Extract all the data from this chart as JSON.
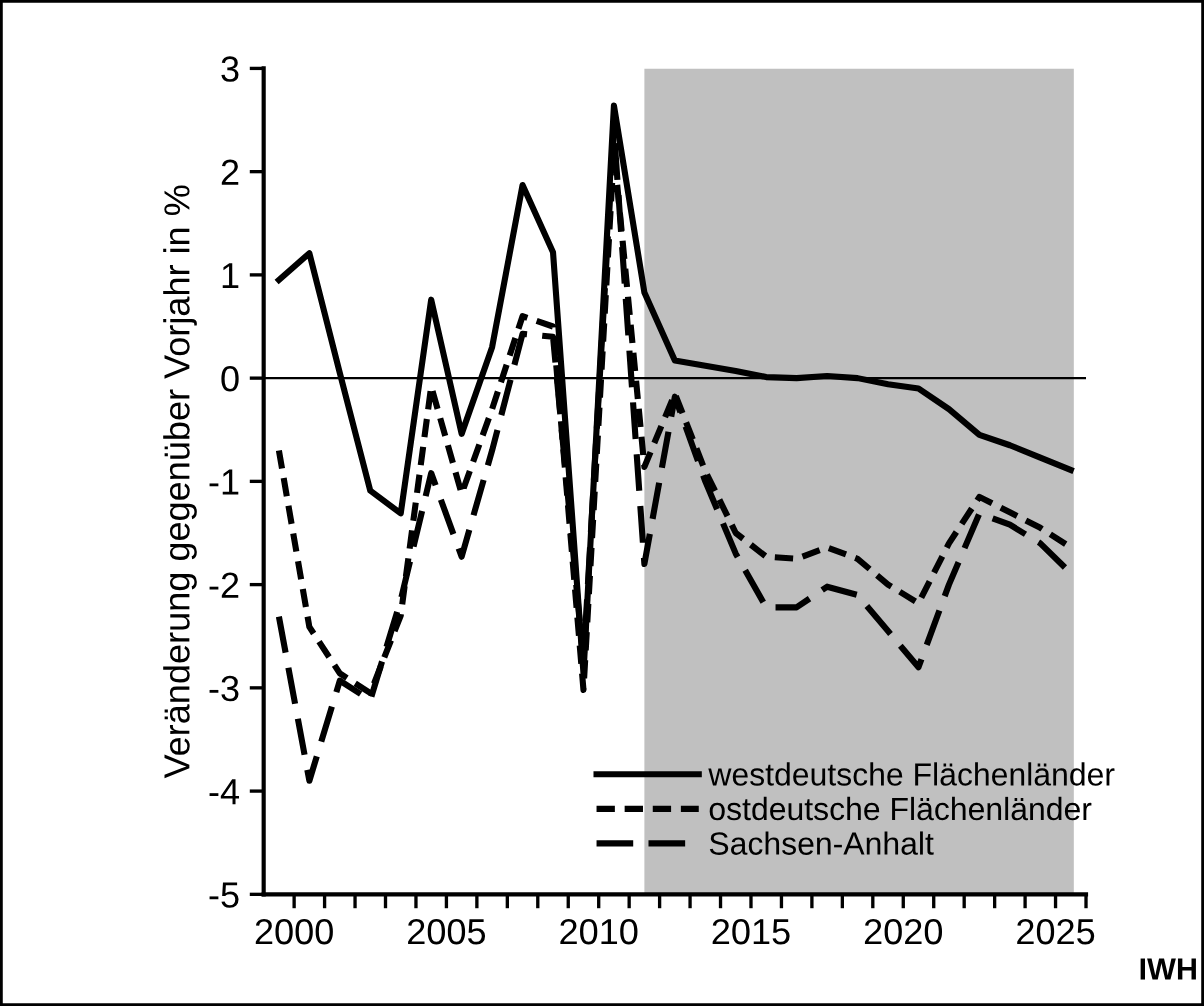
{
  "chart_data": {
    "type": "line",
    "ylabel": "Veränderung gegenüber Vorjahr in %",
    "x": [
      1999.5,
      2000.5,
      2001.5,
      2002.5,
      2003.5,
      2004.5,
      2005.5,
      2006.5,
      2007.5,
      2008.5,
      2009.5,
      2010.5,
      2011.5,
      2012.5,
      2013.5,
      2014.5,
      2015.5,
      2016.5,
      2017.5,
      2018.5,
      2019.5,
      2020.5,
      2021.5,
      2022.5,
      2023.5,
      2024.5,
      2025.5
    ],
    "series": [
      {
        "name": "westdeutsche Flächenländer",
        "color": "#000000",
        "line_style": "solid",
        "values": [
          0.95,
          1.21,
          0.05,
          -1.09,
          -1.31,
          0.76,
          -0.54,
          0.3,
          1.87,
          1.22,
          -2.86,
          2.64,
          0.83,
          0.17,
          0.12,
          0.07,
          0.01,
          0.0,
          0.02,
          0.0,
          -0.06,
          -0.1,
          -0.3,
          -0.55,
          -0.65,
          -0.77,
          -0.89
        ]
      },
      {
        "name": "ostdeutsche Flächenländer",
        "color": "#000000",
        "line_style": "dashed",
        "values": [
          -0.7,
          -2.41,
          -2.86,
          -3.05,
          -2.3,
          -0.08,
          -1.12,
          -0.3,
          0.6,
          0.5,
          -3.02,
          2.2,
          -0.86,
          -0.15,
          -0.9,
          -1.5,
          -1.73,
          -1.75,
          -1.64,
          -1.75,
          -2.0,
          -2.18,
          -1.6,
          -1.15,
          -1.3,
          -1.45,
          -1.64
        ]
      },
      {
        "name": "Sachsen-Anhalt",
        "color": "#000000",
        "line_style": "dashed",
        "values": [
          -2.31,
          -3.9,
          -2.93,
          -3.12,
          -2.15,
          -0.92,
          -1.73,
          -0.7,
          0.43,
          0.4,
          -2.75,
          2.4,
          -1.8,
          -0.18,
          -1.0,
          -1.7,
          -2.22,
          -2.22,
          -2.02,
          -2.1,
          -2.45,
          -2.8,
          -2.0,
          -1.31,
          -1.42,
          -1.6,
          -1.89
        ]
      }
    ],
    "xlim": [
      1999,
      2026
    ],
    "xticks": [
      {
        "value": 2000,
        "label": "2000"
      },
      {
        "value": 2001,
        "label": null
      },
      {
        "value": 2002,
        "label": null
      },
      {
        "value": 2003,
        "label": null
      },
      {
        "value": 2004,
        "label": null
      },
      {
        "value": 2005,
        "label": "2005"
      },
      {
        "value": 2006,
        "label": null
      },
      {
        "value": 2007,
        "label": null
      },
      {
        "value": 2008,
        "label": null
      },
      {
        "value": 2009,
        "label": null
      },
      {
        "value": 2010,
        "label": "2010"
      },
      {
        "value": 2011,
        "label": null
      },
      {
        "value": 2012,
        "label": null
      },
      {
        "value": 2013,
        "label": null
      },
      {
        "value": 2014,
        "label": null
      },
      {
        "value": 2015,
        "label": "2015"
      },
      {
        "value": 2016,
        "label": null
      },
      {
        "value": 2017,
        "label": null
      },
      {
        "value": 2018,
        "label": null
      },
      {
        "value": 2019,
        "label": null
      },
      {
        "value": 2020,
        "label": "2020"
      },
      {
        "value": 2021,
        "label": null
      },
      {
        "value": 2022,
        "label": null
      },
      {
        "value": 2023,
        "label": null
      },
      {
        "value": 2024,
        "label": null
      },
      {
        "value": 2025,
        "label": "2025"
      },
      {
        "value": 2026,
        "label": null
      }
    ],
    "ylim": [
      -5,
      3
    ],
    "yticks": [
      -5,
      -4,
      -3,
      -2,
      -1,
      0,
      1,
      2,
      3
    ],
    "ref_lines": [
      {
        "axis": "y",
        "value": 0,
        "label": null,
        "color": "#000000"
      }
    ],
    "bands": [
      {
        "axis": "x",
        "from": 2011.5,
        "to": 2025.6,
        "label": null,
        "color": "#c0c0c0"
      }
    ],
    "grid": false,
    "legend": "bottom",
    "marker": "none",
    "annotations": [
      "IWH"
    ]
  }
}
